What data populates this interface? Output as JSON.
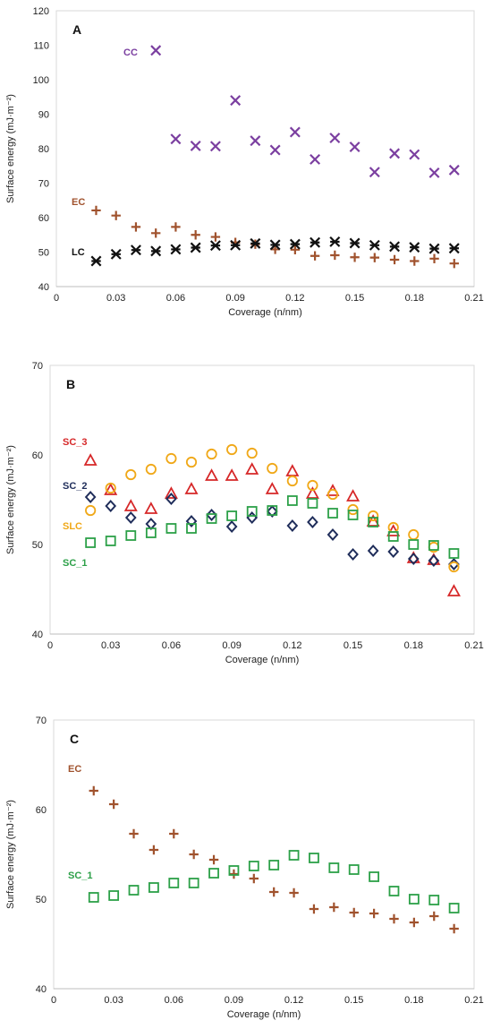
{
  "chart_data": [
    {
      "type": "scatter",
      "panel_label": "A",
      "xlabel": "Coverage (n/nm)",
      "ylabel": "Surface energy (mJ·m⁻²)",
      "xlim": [
        0,
        0.21
      ],
      "ylim": [
        40,
        120
      ],
      "xticks": [
        "0",
        "0.03",
        "0.06",
        "0.09",
        "0.12",
        "0.15",
        "0.18",
        "0.21"
      ],
      "yticks": [
        "40",
        "50",
        "60",
        "70",
        "80",
        "90",
        "100",
        "110",
        "120"
      ],
      "grid": false,
      "series": [
        {
          "name": "CC",
          "marker": "x",
          "color": "#7b3fa0",
          "x": [
            0.05,
            0.06,
            0.07,
            0.08,
            0.09,
            0.1,
            0.11,
            0.12,
            0.13,
            0.14,
            0.15,
            0.16,
            0.17,
            0.18,
            0.19,
            0.2
          ],
          "y": [
            108.5,
            82.8,
            80.8,
            80.7,
            94.0,
            82.3,
            79.6,
            84.8,
            76.9,
            83.1,
            80.5,
            73.2,
            78.6,
            78.3,
            73.0,
            73.8
          ]
        },
        {
          "name": "EC",
          "marker": "plus",
          "color": "#a0522d",
          "x": [
            0.02,
            0.03,
            0.04,
            0.05,
            0.06,
            0.07,
            0.08,
            0.09,
            0.1,
            0.11,
            0.12,
            0.13,
            0.14,
            0.15,
            0.16,
            0.17,
            0.18,
            0.19,
            0.2
          ],
          "y": [
            62.1,
            60.6,
            57.3,
            55.5,
            57.3,
            55.0,
            54.4,
            52.8,
            52.3,
            50.8,
            50.7,
            48.9,
            49.1,
            48.5,
            48.4,
            47.8,
            47.4,
            48.1,
            46.7
          ]
        },
        {
          "name": "LC",
          "marker": "star",
          "color": "#111111",
          "x": [
            0.02,
            0.03,
            0.04,
            0.05,
            0.06,
            0.07,
            0.08,
            0.09,
            0.1,
            0.11,
            0.12,
            0.13,
            0.14,
            0.15,
            0.16,
            0.17,
            0.18,
            0.19,
            0.2
          ],
          "y": [
            47.4,
            49.4,
            50.6,
            50.3,
            50.8,
            51.3,
            51.9,
            52.0,
            52.5,
            52.1,
            52.3,
            52.8,
            53.0,
            52.6,
            52.0,
            51.6,
            51.4,
            51.0,
            51.1
          ]
        }
      ]
    },
    {
      "type": "scatter",
      "panel_label": "B",
      "xlabel": "Coverage (n/nm)",
      "ylabel": "Surface energy (mJ·m⁻²)",
      "xlim": [
        0,
        0.21
      ],
      "ylim": [
        40,
        70
      ],
      "xticks": [
        "0",
        "0.03",
        "0.06",
        "0.09",
        "0.12",
        "0.15",
        "0.18",
        "0.21"
      ],
      "yticks": [
        "40",
        "50",
        "60",
        "70"
      ],
      "grid": false,
      "series": [
        {
          "name": "SC_3",
          "marker": "triangle",
          "color": "#d62728",
          "x": [
            0.02,
            0.03,
            0.04,
            0.05,
            0.06,
            0.07,
            0.08,
            0.09,
            0.1,
            0.11,
            0.12,
            0.13,
            0.14,
            0.15,
            0.16,
            0.17,
            0.18,
            0.19,
            0.2
          ],
          "y": [
            59.4,
            56.1,
            54.3,
            54.0,
            55.7,
            56.2,
            57.7,
            57.7,
            58.4,
            56.2,
            58.2,
            55.7,
            56.0,
            55.4,
            52.6,
            51.5,
            48.5,
            48.3,
            44.8
          ]
        },
        {
          "name": "SC_2",
          "marker": "diamond",
          "color": "#1f2d5a",
          "x": [
            0.02,
            0.03,
            0.04,
            0.05,
            0.06,
            0.07,
            0.08,
            0.09,
            0.1,
            0.11,
            0.12,
            0.13,
            0.14,
            0.15,
            0.16,
            0.17,
            0.18,
            0.19,
            0.2
          ],
          "y": [
            55.3,
            54.3,
            53.0,
            52.3,
            55.1,
            52.6,
            53.3,
            52.0,
            53.0,
            53.7,
            52.1,
            52.5,
            51.1,
            48.9,
            49.3,
            49.2,
            48.4,
            48.2,
            47.8
          ]
        },
        {
          "name": "SLC",
          "marker": "circle",
          "color": "#f0a818",
          "x": [
            0.02,
            0.03,
            0.04,
            0.05,
            0.06,
            0.07,
            0.08,
            0.09,
            0.1,
            0.11,
            0.12,
            0.13,
            0.14,
            0.15,
            0.16,
            0.17,
            0.18,
            0.19,
            0.2
          ],
          "y": [
            53.8,
            56.3,
            57.8,
            58.4,
            59.6,
            59.2,
            60.1,
            60.6,
            60.2,
            58.5,
            57.1,
            56.6,
            55.6,
            53.9,
            53.2,
            51.9,
            51.1,
            49.7,
            47.5
          ]
        },
        {
          "name": "SC_1",
          "marker": "square",
          "color": "#2ca048",
          "x": [
            0.02,
            0.03,
            0.04,
            0.05,
            0.06,
            0.07,
            0.08,
            0.09,
            0.1,
            0.11,
            0.12,
            0.13,
            0.14,
            0.15,
            0.16,
            0.17,
            0.18,
            0.19,
            0.2
          ],
          "y": [
            50.2,
            50.4,
            51.0,
            51.3,
            51.8,
            51.8,
            52.9,
            53.2,
            53.7,
            53.8,
            54.9,
            54.6,
            53.5,
            53.3,
            52.5,
            50.9,
            50.0,
            49.9,
            49.0
          ]
        }
      ]
    },
    {
      "type": "scatter",
      "panel_label": "C",
      "xlabel": "Coverage (n/nm)",
      "ylabel": "Surface energy (mJ·m⁻²)",
      "xlim": [
        0,
        0.21
      ],
      "ylim": [
        40,
        70
      ],
      "xticks": [
        "0",
        "0.03",
        "0.06",
        "0.09",
        "0.12",
        "0.15",
        "0.18",
        "0.21"
      ],
      "yticks": [
        "40",
        "50",
        "60",
        "70"
      ],
      "grid": false,
      "series": [
        {
          "name": "EC",
          "marker": "plus",
          "color": "#a0522d",
          "x": [
            0.02,
            0.03,
            0.04,
            0.05,
            0.06,
            0.07,
            0.08,
            0.09,
            0.1,
            0.11,
            0.12,
            0.13,
            0.14,
            0.15,
            0.16,
            0.17,
            0.18,
            0.19,
            0.2
          ],
          "y": [
            62.1,
            60.6,
            57.3,
            55.5,
            57.3,
            55.0,
            54.4,
            52.8,
            52.3,
            50.8,
            50.7,
            48.9,
            49.1,
            48.5,
            48.4,
            47.8,
            47.4,
            48.1,
            46.7
          ]
        },
        {
          "name": "SC_1",
          "marker": "square",
          "color": "#2ca048",
          "x": [
            0.02,
            0.03,
            0.04,
            0.05,
            0.06,
            0.07,
            0.08,
            0.09,
            0.1,
            0.11,
            0.12,
            0.13,
            0.14,
            0.15,
            0.16,
            0.17,
            0.18,
            0.19,
            0.2
          ],
          "y": [
            50.2,
            50.4,
            51.0,
            51.3,
            51.8,
            51.8,
            52.9,
            53.2,
            53.7,
            53.8,
            54.9,
            54.6,
            53.5,
            53.3,
            52.5,
            50.9,
            50.0,
            49.9,
            49.0
          ]
        }
      ]
    }
  ]
}
